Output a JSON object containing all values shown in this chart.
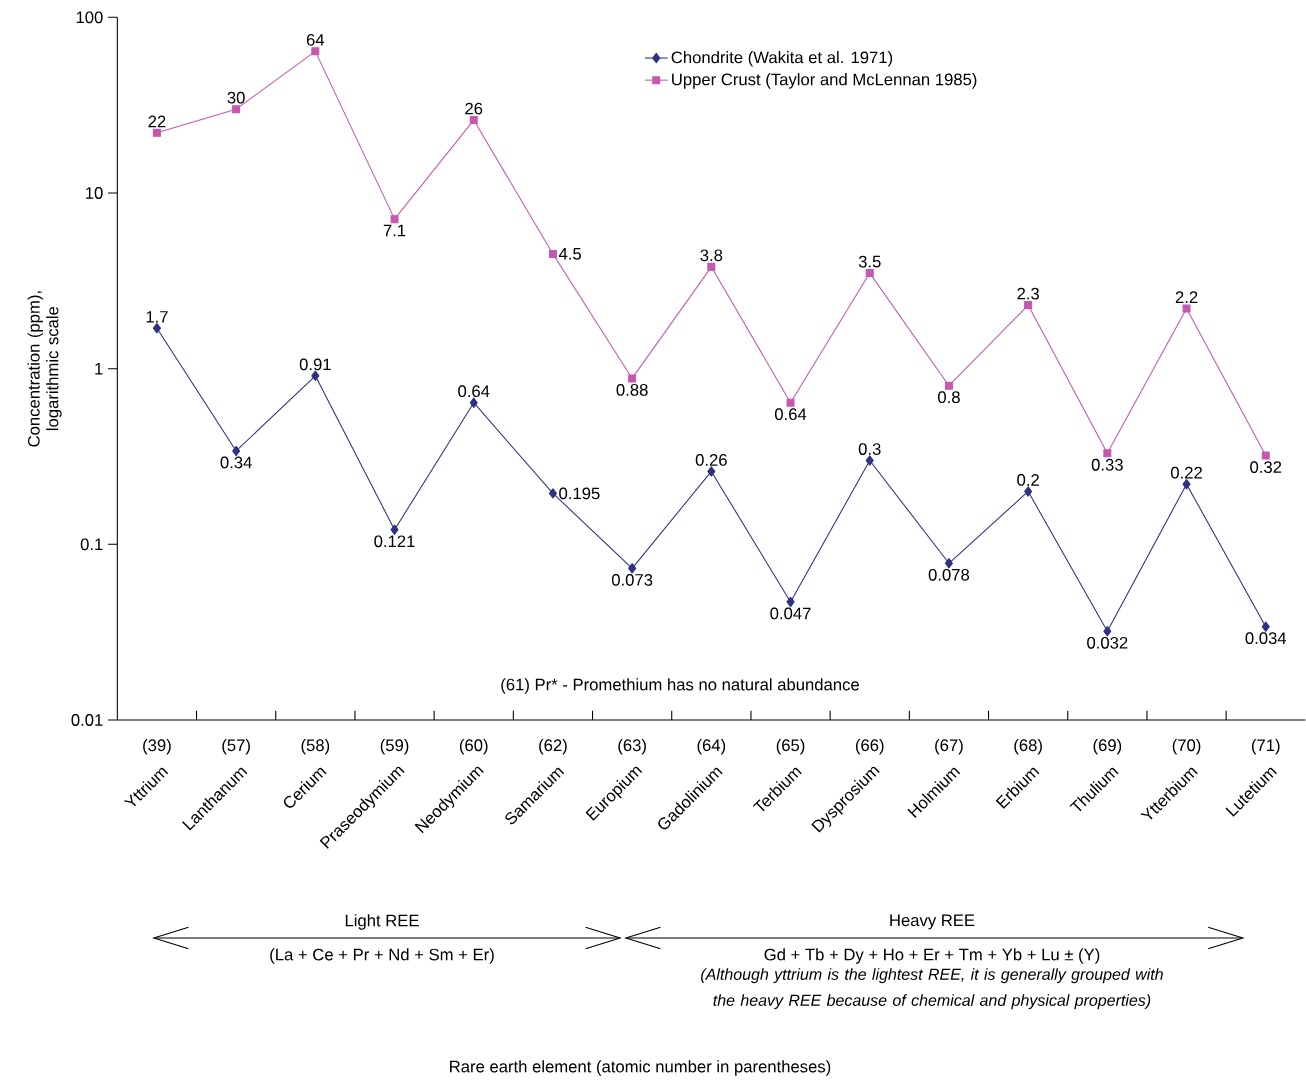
{
  "chart_data": {
    "type": "line",
    "categories": [
      "Yttrium",
      "Lanthanum",
      "Cerium",
      "Praseodymium",
      "Neodymium",
      "Samarium",
      "Europium",
      "Gadolinium",
      "Terbium",
      "Dysprosium",
      "Holmium",
      "Erbium",
      "Thulium",
      "Ytterbium",
      "Lutetium"
    ],
    "series": [
      {
        "name": "Chondrite (Wakita et al. 1971)",
        "color": "#2e3282",
        "marker": "diamond",
        "values": [
          1.7,
          0.34,
          0.91,
          0.121,
          0.64,
          0.195,
          0.073,
          0.26,
          0.047,
          0.3,
          0.078,
          0.2,
          0.032,
          0.22,
          0.034
        ]
      },
      {
        "name": "Upper Crust (Taylor and McLennan 1985)",
        "color": "#c558b0",
        "marker": "square",
        "values": [
          22,
          30,
          64,
          7.1,
          26,
          4.5,
          0.88,
          3.8,
          0.64,
          3.5,
          0.8,
          2.3,
          0.33,
          2.2,
          0.32
        ]
      }
    ],
    "ylabel": "Concentration (ppm), logarithmic scale",
    "log": "y",
    "ylim": [
      0.01,
      100
    ],
    "yticks": [
      0.01,
      0.1,
      1,
      10,
      100
    ],
    "grid": false,
    "legend": "top right",
    "data_labels": true,
    "line_style": "solid",
    "annotations": [
      "(61) Pr* - Promethium has no natural abundance",
      "Light REE",
      "(La + Ce + Pr + Nd + Sm + Er)",
      "Heavy REE",
      "Gd + Tb + Dy + Ho + Er + Tm + Yb + Lu ± (Y)",
      "(Although yttrium is the lightest REE, it is generally grouped with the heavy REE because of chemical and physical properties)",
      "Rare earth element (atomic number in parentheses)",
      "(39)",
      "(57)",
      "(58)",
      "(59)",
      "(60)",
      "(62)",
      "(63)",
      "(64)",
      "(65)",
      "(66)",
      "(67)",
      "(68)",
      "(69)",
      "(70)",
      "(71)"
    ]
  }
}
